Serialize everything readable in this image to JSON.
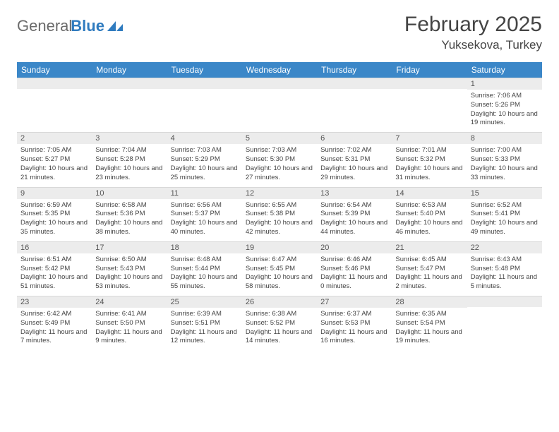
{
  "logo": {
    "text_gray": "General",
    "text_blue": "Blue"
  },
  "title": "February 2025",
  "location": "Yuksekova, Turkey",
  "colors": {
    "header_bg": "#3b87c8",
    "header_text": "#ffffff",
    "daynum_bg": "#ececec",
    "body_text": "#444444",
    "logo_gray": "#6b6b6b",
    "logo_blue": "#2f7bbf"
  },
  "day_labels": [
    "Sunday",
    "Monday",
    "Tuesday",
    "Wednesday",
    "Thursday",
    "Friday",
    "Saturday"
  ],
  "weeks": [
    [
      null,
      null,
      null,
      null,
      null,
      null,
      {
        "d": "1",
        "sr": "7:06 AM",
        "ss": "5:26 PM",
        "dl": "10 hours and 19 minutes."
      }
    ],
    [
      {
        "d": "2",
        "sr": "7:05 AM",
        "ss": "5:27 PM",
        "dl": "10 hours and 21 minutes."
      },
      {
        "d": "3",
        "sr": "7:04 AM",
        "ss": "5:28 PM",
        "dl": "10 hours and 23 minutes."
      },
      {
        "d": "4",
        "sr": "7:03 AM",
        "ss": "5:29 PM",
        "dl": "10 hours and 25 minutes."
      },
      {
        "d": "5",
        "sr": "7:03 AM",
        "ss": "5:30 PM",
        "dl": "10 hours and 27 minutes."
      },
      {
        "d": "6",
        "sr": "7:02 AM",
        "ss": "5:31 PM",
        "dl": "10 hours and 29 minutes."
      },
      {
        "d": "7",
        "sr": "7:01 AM",
        "ss": "5:32 PM",
        "dl": "10 hours and 31 minutes."
      },
      {
        "d": "8",
        "sr": "7:00 AM",
        "ss": "5:33 PM",
        "dl": "10 hours and 33 minutes."
      }
    ],
    [
      {
        "d": "9",
        "sr": "6:59 AM",
        "ss": "5:35 PM",
        "dl": "10 hours and 35 minutes."
      },
      {
        "d": "10",
        "sr": "6:58 AM",
        "ss": "5:36 PM",
        "dl": "10 hours and 38 minutes."
      },
      {
        "d": "11",
        "sr": "6:56 AM",
        "ss": "5:37 PM",
        "dl": "10 hours and 40 minutes."
      },
      {
        "d": "12",
        "sr": "6:55 AM",
        "ss": "5:38 PM",
        "dl": "10 hours and 42 minutes."
      },
      {
        "d": "13",
        "sr": "6:54 AM",
        "ss": "5:39 PM",
        "dl": "10 hours and 44 minutes."
      },
      {
        "d": "14",
        "sr": "6:53 AM",
        "ss": "5:40 PM",
        "dl": "10 hours and 46 minutes."
      },
      {
        "d": "15",
        "sr": "6:52 AM",
        "ss": "5:41 PM",
        "dl": "10 hours and 49 minutes."
      }
    ],
    [
      {
        "d": "16",
        "sr": "6:51 AM",
        "ss": "5:42 PM",
        "dl": "10 hours and 51 minutes."
      },
      {
        "d": "17",
        "sr": "6:50 AM",
        "ss": "5:43 PM",
        "dl": "10 hours and 53 minutes."
      },
      {
        "d": "18",
        "sr": "6:48 AM",
        "ss": "5:44 PM",
        "dl": "10 hours and 55 minutes."
      },
      {
        "d": "19",
        "sr": "6:47 AM",
        "ss": "5:45 PM",
        "dl": "10 hours and 58 minutes."
      },
      {
        "d": "20",
        "sr": "6:46 AM",
        "ss": "5:46 PM",
        "dl": "11 hours and 0 minutes."
      },
      {
        "d": "21",
        "sr": "6:45 AM",
        "ss": "5:47 PM",
        "dl": "11 hours and 2 minutes."
      },
      {
        "d": "22",
        "sr": "6:43 AM",
        "ss": "5:48 PM",
        "dl": "11 hours and 5 minutes."
      }
    ],
    [
      {
        "d": "23",
        "sr": "6:42 AM",
        "ss": "5:49 PM",
        "dl": "11 hours and 7 minutes."
      },
      {
        "d": "24",
        "sr": "6:41 AM",
        "ss": "5:50 PM",
        "dl": "11 hours and 9 minutes."
      },
      {
        "d": "25",
        "sr": "6:39 AM",
        "ss": "5:51 PM",
        "dl": "11 hours and 12 minutes."
      },
      {
        "d": "26",
        "sr": "6:38 AM",
        "ss": "5:52 PM",
        "dl": "11 hours and 14 minutes."
      },
      {
        "d": "27",
        "sr": "6:37 AM",
        "ss": "5:53 PM",
        "dl": "11 hours and 16 minutes."
      },
      {
        "d": "28",
        "sr": "6:35 AM",
        "ss": "5:54 PM",
        "dl": "11 hours and 19 minutes."
      },
      null
    ]
  ],
  "field_labels": {
    "sunrise": "Sunrise: ",
    "sunset": "Sunset: ",
    "daylight": "Daylight: "
  }
}
